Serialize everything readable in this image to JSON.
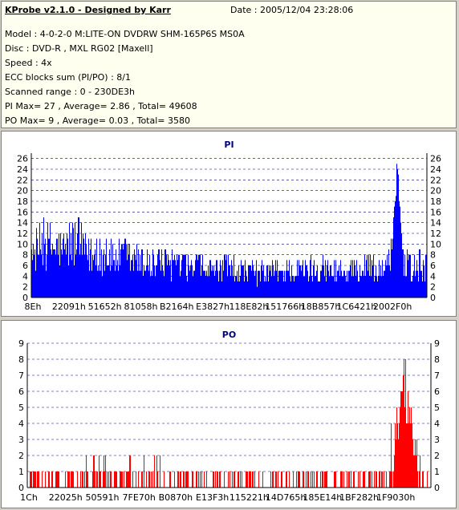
{
  "info": {
    "title": "KProbe v2.1.0 - Designed by Karr",
    "date": "Date : 2005/12/04 23:28:06",
    "lines": [
      "Model : 4-0-2-0 M:LITE-ON DVDRW SHM-165P6S MS0A",
      "Disc : DVD-R , MXL RG02 [Maxell]",
      "Speed : 4x",
      "ECC blocks sum (PI/PO) : 8/1",
      "Scanned range : 0 - 230DE3h",
      "PI Max= 27 , Average= 2.86 , Total= 49608",
      "PO Max= 9 , Average= 0.03 , Total= 3580"
    ]
  },
  "chart_data": [
    {
      "type": "bar",
      "title": "PI",
      "color": "#0000ff",
      "ylim": [
        0,
        27
      ],
      "yticks": [
        0,
        2,
        4,
        6,
        8,
        10,
        12,
        14,
        16,
        18,
        20,
        22,
        24,
        26
      ],
      "xticks": [
        "8Eh",
        "22091h",
        "51652h",
        "81058h",
        "B2164h",
        "E3827h",
        "118E82h",
        "151766h",
        "18B857h",
        "1C6421h",
        "2002F0h"
      ],
      "max": 27,
      "average": 2.86,
      "total": 49608,
      "grid": true,
      "profile": [
        [
          0.0,
          9
        ],
        [
          0.01,
          13
        ],
        [
          0.03,
          15
        ],
        [
          0.05,
          14
        ],
        [
          0.08,
          13
        ],
        [
          0.11,
          16
        ],
        [
          0.14,
          12
        ],
        [
          0.18,
          11
        ],
        [
          0.22,
          11
        ],
        [
          0.26,
          10
        ],
        [
          0.3,
          9
        ],
        [
          0.34,
          9
        ],
        [
          0.38,
          8
        ],
        [
          0.42,
          8
        ],
        [
          0.46,
          7
        ],
        [
          0.5,
          8
        ],
        [
          0.54,
          7
        ],
        [
          0.58,
          7
        ],
        [
          0.62,
          7
        ],
        [
          0.66,
          7
        ],
        [
          0.7,
          8
        ],
        [
          0.74,
          8
        ],
        [
          0.78,
          7
        ],
        [
          0.82,
          7
        ],
        [
          0.86,
          8
        ],
        [
          0.88,
          7
        ],
        [
          0.9,
          8
        ],
        [
          0.91,
          12
        ],
        [
          0.92,
          20
        ],
        [
          0.925,
          27
        ],
        [
          0.93,
          22
        ],
        [
          0.935,
          16
        ],
        [
          0.94,
          10
        ],
        [
          0.96,
          8
        ],
        [
          0.98,
          9
        ],
        [
          1.0,
          8
        ]
      ]
    },
    {
      "type": "bar",
      "title": "PO",
      "color": "#ff0000",
      "ylim": [
        0,
        9
      ],
      "yticks": [
        0,
        1,
        2,
        3,
        4,
        5,
        6,
        7,
        8,
        9
      ],
      "xticks": [
        "1Ch",
        "22025h",
        "50591h",
        "7FE70h",
        "B0870h",
        "E13F3h",
        "115221h",
        "14D765h",
        "185E14h",
        "1BF282h",
        "1F9030h"
      ],
      "max": 9,
      "average": 0.03,
      "total": 3580,
      "grid": true,
      "profile": [
        [
          0.0,
          2
        ],
        [
          0.1,
          2
        ],
        [
          0.2,
          2
        ],
        [
          0.3,
          2
        ],
        [
          0.4,
          1
        ],
        [
          0.5,
          1
        ],
        [
          0.6,
          1
        ],
        [
          0.7,
          1
        ],
        [
          0.8,
          1
        ],
        [
          0.86,
          2
        ],
        [
          0.89,
          3
        ],
        [
          0.91,
          4
        ],
        [
          0.92,
          6
        ],
        [
          0.935,
          9
        ],
        [
          0.945,
          8
        ],
        [
          0.955,
          5
        ],
        [
          0.965,
          3
        ],
        [
          0.98,
          2
        ],
        [
          1.0,
          3
        ]
      ]
    }
  ]
}
